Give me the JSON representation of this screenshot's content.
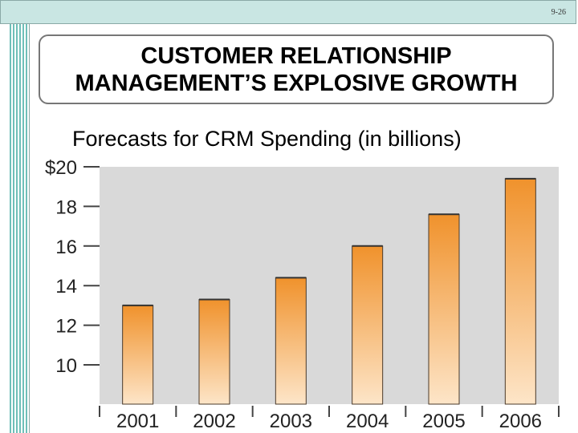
{
  "slide": {
    "number": "9-26",
    "title_line1": "CUSTOMER RELATIONSHIP",
    "title_line2": "MANAGEMENT’S EXPLOSIVE GROWTH"
  },
  "colors": {
    "bar_top": "#f0922c",
    "bar_bottom": "#fde5c8",
    "plot_bg": "#d9d9d9",
    "accent": "#6fbfb8"
  },
  "chart_data": {
    "type": "bar",
    "title": "Forecasts for CRM Spending (in billions)",
    "xlabel": "",
    "ylabel": "",
    "categories": [
      "2001",
      "2002",
      "2003",
      "2004",
      "2005",
      "2006"
    ],
    "values": [
      13.0,
      13.3,
      14.4,
      16.0,
      17.6,
      19.4
    ],
    "ylim": [
      8,
      20
    ],
    "yticks": [
      10,
      12,
      14,
      16,
      18,
      20
    ],
    "ytick_labels": [
      "10",
      "12",
      "14",
      "16",
      "18",
      "$20"
    ],
    "grid": false
  }
}
